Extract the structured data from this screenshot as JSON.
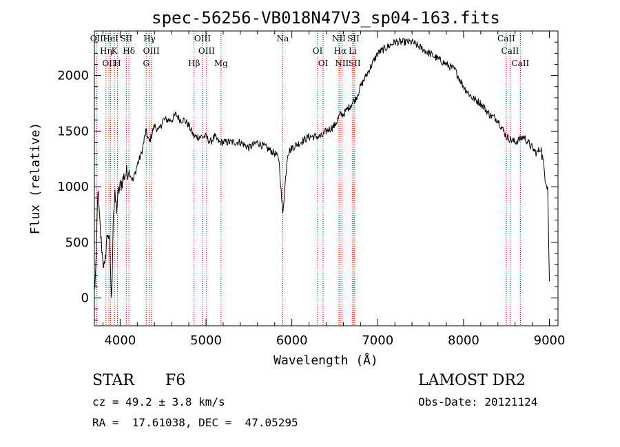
{
  "chart_data": {
    "type": "line",
    "title": "spec-56256-VB018N47V3_sp04-163.fits",
    "xlabel": "Wavelength (Å)",
    "ylabel": "Flux (relative)",
    "xlim": [
      3700,
      9100
    ],
    "ylim": [
      -250,
      2400
    ],
    "xticks": [
      4000,
      5000,
      6000,
      7000,
      8000,
      9000
    ],
    "yticks": [
      0,
      500,
      1000,
      1500,
      2000
    ],
    "series": [
      {
        "x": [
          3700,
          3720,
          3740,
          3760,
          3780,
          3800,
          3820,
          3840,
          3860,
          3880,
          3900,
          3920,
          3940,
          3960,
          3980,
          4000,
          4050,
          4100,
          4150,
          4200,
          4250,
          4300,
          4340,
          4400,
          4450,
          4500,
          4550,
          4600,
          4650,
          4700,
          4750,
          4800,
          4861,
          4900,
          4950,
          5000,
          5050,
          5100,
          5150,
          5200,
          5300,
          5400,
          5500,
          5600,
          5700,
          5800,
          5850,
          5893,
          5950,
          6000,
          6100,
          6200,
          6300,
          6350,
          6400,
          6500,
          6563,
          6600,
          6700,
          6750,
          6800,
          6900,
          7000,
          7100,
          7200,
          7300,
          7400,
          7500,
          7600,
          7700,
          7800,
          7900,
          8000,
          8100,
          8200,
          8300,
          8400,
          8500,
          8600,
          8700,
          8800,
          8850,
          8900,
          8950,
          8980,
          9000
        ],
        "y": [
          50,
          300,
          1000,
          700,
          500,
          350,
          250,
          500,
          600,
          450,
          -50,
          750,
          900,
          800,
          950,
          1000,
          1100,
          1150,
          1050,
          1200,
          1300,
          1500,
          1400,
          1550,
          1500,
          1600,
          1600,
          1600,
          1650,
          1600,
          1600,
          1550,
          1450,
          1450,
          1450,
          1450,
          1400,
          1450,
          1400,
          1400,
          1400,
          1400,
          1350,
          1400,
          1350,
          1300,
          1250,
          750,
          1300,
          1350,
          1400,
          1450,
          1450,
          1450,
          1500,
          1550,
          1650,
          1650,
          1750,
          1800,
          1900,
          2050,
          2200,
          2250,
          2300,
          2300,
          2300,
          2250,
          2200,
          2150,
          2100,
          2050,
          1900,
          1800,
          1750,
          1650,
          1600,
          1450,
          1400,
          1450,
          1350,
          1300,
          1350,
          1100,
          1000,
          150
        ]
      }
    ],
    "lines": [
      {
        "name": "OII",
        "w": 3727
      },
      {
        "name": "Hη",
        "w": 3835
      },
      {
        "name": "OII",
        "w": 3869
      },
      {
        "name": "HeI",
        "w": 3889
      },
      {
        "name": "K",
        "w": 3934
      },
      {
        "name": "H",
        "w": 3969
      },
      {
        "name": "SII",
        "w": 4072
      },
      {
        "name": "Hδ",
        "w": 4102
      },
      {
        "name": "G",
        "w": 4304
      },
      {
        "name": "Hγ",
        "w": 4341
      },
      {
        "name": "OIII",
        "w": 4363
      },
      {
        "name": "Hβ",
        "w": 4861
      },
      {
        "name": "OIII",
        "w": 4959
      },
      {
        "name": "OIII",
        "w": 5007
      },
      {
        "name": "Mg",
        "w": 5175
      },
      {
        "name": "Na",
        "w": 5894
      },
      {
        "name": "OI",
        "w": 6300
      },
      {
        "name": "OI",
        "w": 6364
      },
      {
        "name": "NII",
        "w": 6548
      },
      {
        "name": "Hα",
        "w": 6563
      },
      {
        "name": "NII",
        "w": 6583
      },
      {
        "name": "SII",
        "w": 6717
      },
      {
        "name": "Li",
        "w": 6708
      },
      {
        "name": "SII",
        "w": 6731
      },
      {
        "name": "CaII",
        "w": 8498
      },
      {
        "name": "CaII",
        "w": 8542
      },
      {
        "name": "CaII",
        "w": 8662
      }
    ]
  },
  "info": {
    "object_class": "STAR",
    "subclass": "F6",
    "cz": "cz = 49.2 ± 3.8 km/s",
    "coords": "RA =  17.61038, DEC =  47.05295",
    "survey": "LAMOST DR2",
    "obs_date": "Obs-Date: 20121124"
  }
}
